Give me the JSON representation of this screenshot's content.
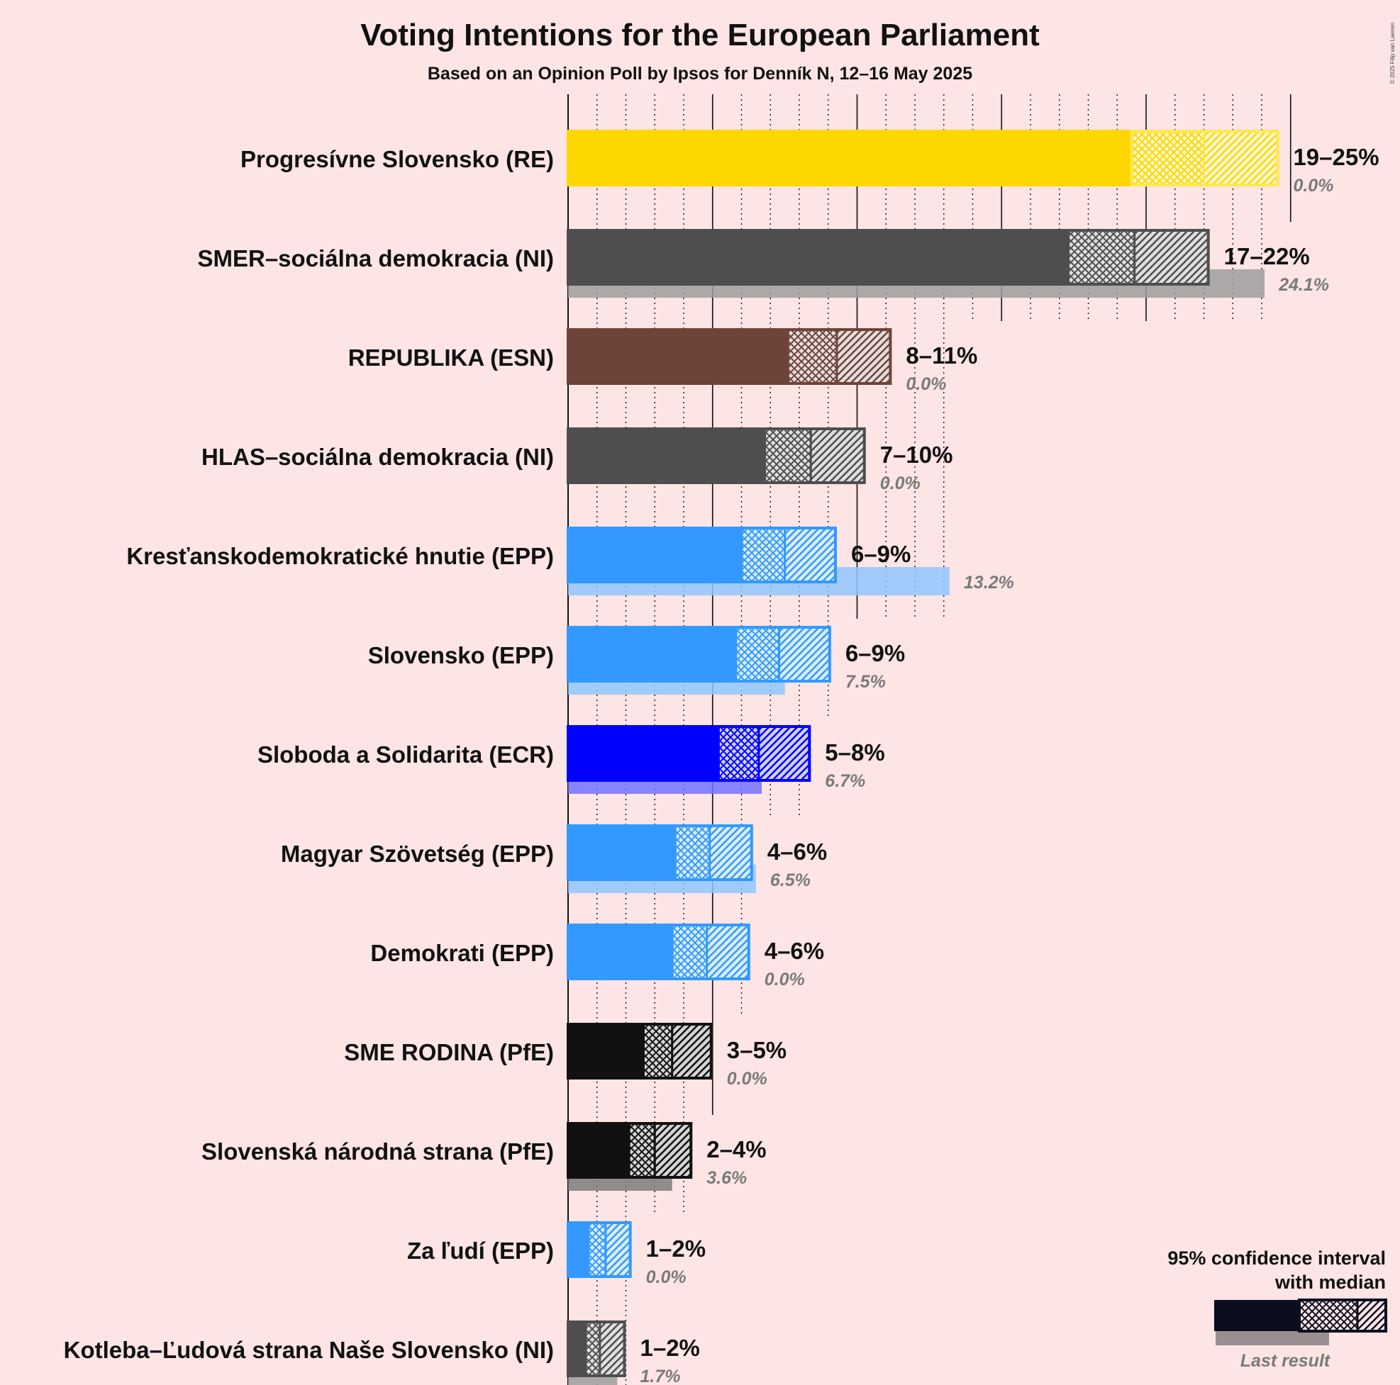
{
  "title": "Voting Intentions for the European Parliament",
  "subtitle": "Based on an Opinion Poll by Ipsos for Denník N, 12–16 May 2025",
  "copyright": "© 2025 Filip van Laenen",
  "legend": {
    "line1": "95% confidence interval",
    "line2": "with median",
    "last_result": "Last result"
  },
  "chart_data": {
    "type": "bar",
    "orientation": "horizontal",
    "title": "Voting Intentions for the European Parliament",
    "subtitle": "Based on an Opinion Poll by Ipsos for Denník N, 12–16 May 2025",
    "unit": "%",
    "xlim": [
      0,
      25
    ],
    "gridlines_major_every": 5,
    "gridlines_minor_every": 1,
    "series": [
      {
        "party": "Progresívne Slovensko (RE)",
        "color": "#ffd700",
        "ci_low": 19.5,
        "median": 22.0,
        "ci_high": 24.6,
        "range_label": "19–25%",
        "last_result": 0.0,
        "last_label": "0.0%"
      },
      {
        "party": "SMER–sociálna demokracia (NI)",
        "color": "#4e4e4e",
        "ci_low": 17.3,
        "median": 19.6,
        "ci_high": 22.2,
        "range_label": "17–22%",
        "last_result": 24.1,
        "last_label": "24.1%"
      },
      {
        "party": "REPUBLIKA (ESN)",
        "color": "#6e443a",
        "ci_low": 7.6,
        "median": 9.3,
        "ci_high": 11.2,
        "range_label": "8–11%",
        "last_result": 0.0,
        "last_label": "0.0%"
      },
      {
        "party": "HLAS–sociálna demokracia (NI)",
        "color": "#4e4e4e",
        "ci_low": 6.8,
        "median": 8.4,
        "ci_high": 10.3,
        "range_label": "7–10%",
        "last_result": 0.0,
        "last_label": "0.0%"
      },
      {
        "party": "Kresťanskodemokratické hnutie (EPP)",
        "color": "#3399ff",
        "ci_low": 6.0,
        "median": 7.5,
        "ci_high": 9.3,
        "range_label": "6–9%",
        "last_result": 13.2,
        "last_label": "13.2%"
      },
      {
        "party": "Slovensko (EPP)",
        "color": "#3399ff",
        "ci_low": 5.8,
        "median": 7.3,
        "ci_high": 9.1,
        "range_label": "6–9%",
        "last_result": 7.5,
        "last_label": "7.5%"
      },
      {
        "party": "Sloboda a Solidarita (ECR)",
        "color": "#0000ff",
        "ci_low": 5.2,
        "median": 6.6,
        "ci_high": 8.4,
        "range_label": "5–8%",
        "last_result": 6.7,
        "last_label": "6.7%"
      },
      {
        "party": "Magyar Szövetség (EPP)",
        "color": "#3399ff",
        "ci_low": 3.7,
        "median": 4.9,
        "ci_high": 6.4,
        "range_label": "4–6%",
        "last_result": 6.5,
        "last_label": "6.5%"
      },
      {
        "party": "Demokrati (EPP)",
        "color": "#3399ff",
        "ci_low": 3.6,
        "median": 4.8,
        "ci_high": 6.3,
        "range_label": "4–6%",
        "last_result": 0.0,
        "last_label": "0.0%"
      },
      {
        "party": "SME RODINA (PfE)",
        "color": "#111111",
        "ci_low": 2.6,
        "median": 3.6,
        "ci_high": 5.0,
        "range_label": "3–5%",
        "last_result": 0.0,
        "last_label": "0.0%"
      },
      {
        "party": "Slovenská národná strana (PfE)",
        "color": "#111111",
        "ci_low": 2.1,
        "median": 3.0,
        "ci_high": 4.3,
        "range_label": "2–4%",
        "last_result": 3.6,
        "last_label": "3.6%"
      },
      {
        "party": "Za ľudí (EPP)",
        "color": "#3399ff",
        "ci_low": 0.7,
        "median": 1.3,
        "ci_high": 2.2,
        "range_label": "1–2%",
        "last_result": 0.0,
        "last_label": "0.0%"
      },
      {
        "party": "Kotleba–Ľudová strana Naše Slovensko (NI)",
        "color": "#4e4e4e",
        "ci_low": 0.6,
        "median": 1.1,
        "ci_high": 2.0,
        "range_label": "1–2%",
        "last_result": 1.7,
        "last_label": "1.7%"
      }
    ]
  }
}
